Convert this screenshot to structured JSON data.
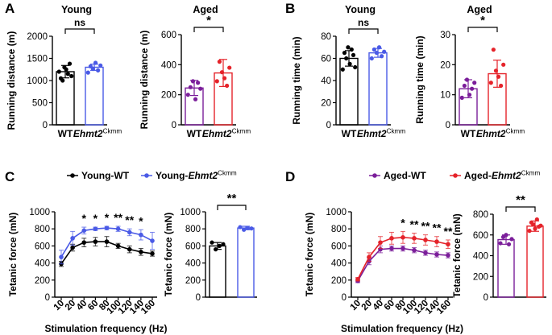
{
  "colors": {
    "black": "#000000",
    "blue": "#4a5ae6",
    "purple": "#7b1e9a",
    "red": "#e5232a"
  },
  "panel_letters": {
    "A": "A",
    "B": "B",
    "C": "C",
    "D": "D"
  },
  "ko_label": {
    "base": "Ehmt2",
    "sup": "Ckmm"
  },
  "chart_data": [
    {
      "id": "A_young",
      "type": "bar",
      "panel": "A",
      "title": "Young",
      "ylabel": "Running distance (m)",
      "ylim": [
        0,
        2000
      ],
      "yticks": [
        0,
        500,
        1000,
        1500,
        2000
      ],
      "categories": [
        "WT",
        "Ehmt2 Ckmm"
      ],
      "values": [
        1200,
        1300
      ],
      "errors": [
        140,
        70
      ],
      "points": [
        [
          1200,
          1050,
          1000,
          1300,
          1250,
          1150,
          1380,
          1100
        ],
        [
          1180,
          1320,
          1260,
          1400,
          1230,
          1340
        ]
      ],
      "colors": [
        "#000000",
        "#4a5ae6"
      ],
      "significance": "ns"
    },
    {
      "id": "A_aged",
      "type": "bar",
      "panel": "A",
      "title": "Aged",
      "ylabel": "Running distance (m)",
      "ylim": [
        0,
        600
      ],
      "yticks": [
        0,
        200,
        400,
        600
      ],
      "categories": [
        "WT",
        "Ehmt2 Ckmm"
      ],
      "values": [
        245,
        345
      ],
      "errors": [
        50,
        90
      ],
      "points": [
        [
          200,
          250,
          290,
          170,
          280,
          240
        ],
        [
          290,
          420,
          350,
          310,
          260,
          380
        ]
      ],
      "colors": [
        "#7b1e9a",
        "#e5232a"
      ],
      "significance": "*"
    },
    {
      "id": "B_young",
      "type": "bar",
      "panel": "B",
      "title": "Young",
      "ylabel": "Running time (min)",
      "ylim": [
        0,
        80
      ],
      "yticks": [
        0,
        20,
        40,
        60,
        80
      ],
      "categories": [
        "WT",
        "Ehmt2 Ckmm"
      ],
      "values": [
        60,
        65
      ],
      "errors": [
        7,
        4
      ],
      "points": [
        [
          50,
          65,
          60,
          70,
          55,
          68,
          63,
          52
        ],
        [
          60,
          68,
          65,
          70,
          62,
          66
        ]
      ],
      "colors": [
        "#000000",
        "#4a5ae6"
      ],
      "significance": "ns"
    },
    {
      "id": "B_aged",
      "type": "bar",
      "panel": "B",
      "title": "Aged",
      "ylabel": "Running time (min)",
      "ylim": [
        0,
        30
      ],
      "yticks": [
        0,
        10,
        20,
        30
      ],
      "categories": [
        "WT",
        "Ehmt2 Ckmm"
      ],
      "values": [
        12,
        17
      ],
      "errors": [
        3,
        4.5
      ],
      "points": [
        [
          9,
          13,
          15,
          10,
          12,
          14
        ],
        [
          14,
          25,
          18,
          16,
          13,
          20
        ]
      ],
      "colors": [
        "#7b1e9a",
        "#e5232a"
      ],
      "significance": "*"
    },
    {
      "id": "C_line",
      "type": "line",
      "panel": "C",
      "xlabel": "Stimulation frequency (Hz)",
      "ylabel": "Tetanic force (mN)",
      "x": [
        10,
        20,
        40,
        60,
        80,
        100,
        120,
        140,
        160
      ],
      "ylim": [
        0,
        1000
      ],
      "yticks": [
        0,
        200,
        400,
        600,
        800,
        1000
      ],
      "series": [
        {
          "name": "Young-WT",
          "color": "#000000",
          "values": [
            390,
            580,
            640,
            650,
            650,
            600,
            560,
            530,
            510
          ],
          "errors": [
            30,
            40,
            50,
            50,
            60,
            30,
            40,
            40,
            30
          ]
        },
        {
          "name": "Young-Ehmt2 Ckmm",
          "color": "#4a5ae6",
          "values": [
            470,
            690,
            780,
            800,
            810,
            800,
            760,
            730,
            660
          ],
          "errors": [
            80,
            80,
            40,
            20,
            20,
            30,
            40,
            60,
            100
          ]
        }
      ],
      "stars": [
        "",
        "",
        "*",
        "*",
        "*",
        "**",
        "**",
        "*",
        ""
      ],
      "legend": "top"
    },
    {
      "id": "C_bar",
      "type": "bar",
      "panel": "C",
      "ylabel": "Tetanic force (mN)",
      "ylim": [
        0,
        1000
      ],
      "yticks": [
        0,
        200,
        400,
        600,
        800,
        1000
      ],
      "categories": [
        "",
        ""
      ],
      "values": [
        600,
        810
      ],
      "errors": [
        40,
        20
      ],
      "points": [
        [
          640,
          560,
          600,
          620
        ],
        [
          820,
          790,
          810,
          805
        ]
      ],
      "colors": [
        "#000000",
        "#4a5ae6"
      ],
      "significance": "**"
    },
    {
      "id": "D_line",
      "type": "line",
      "panel": "D",
      "xlabel": "Stimulation frequency (Hz)",
      "ylabel": "Tetanic force (mN)",
      "x": [
        10,
        20,
        40,
        60,
        80,
        100,
        120,
        140,
        160
      ],
      "ylim": [
        0,
        1000
      ],
      "yticks": [
        0,
        200,
        400,
        600,
        800,
        1000
      ],
      "series": [
        {
          "name": "Aged-WT",
          "color": "#7b1e9a",
          "values": [
            190,
            420,
            560,
            570,
            570,
            550,
            520,
            500,
            490
          ],
          "errors": [
            20,
            40,
            40,
            30,
            30,
            30,
            30,
            30,
            30
          ]
        },
        {
          "name": "Aged-Ehmt2 Ckmm",
          "color": "#e5232a",
          "values": [
            210,
            470,
            640,
            690,
            700,
            690,
            670,
            650,
            620
          ],
          "errors": [
            20,
            50,
            70,
            70,
            70,
            60,
            60,
            60,
            50
          ]
        }
      ],
      "stars": [
        "",
        "",
        "",
        "",
        "*",
        "**",
        "**",
        "**",
        "**"
      ],
      "legend": "top"
    },
    {
      "id": "D_bar",
      "type": "bar",
      "panel": "D",
      "ylabel": "Tetanic force (mN)",
      "ylim": [
        0,
        800
      ],
      "yticks": [
        0,
        200,
        400,
        600,
        800
      ],
      "categories": [
        "",
        ""
      ],
      "values": [
        555,
        685
      ],
      "errors": [
        45,
        50
      ],
      "points": [
        [
          520,
          580,
          600,
          510,
          560
        ],
        [
          640,
          720,
          700,
          660,
          750,
          680,
          690
        ]
      ],
      "colors": [
        "#7b1e9a",
        "#e5232a"
      ],
      "significance": "**"
    }
  ]
}
